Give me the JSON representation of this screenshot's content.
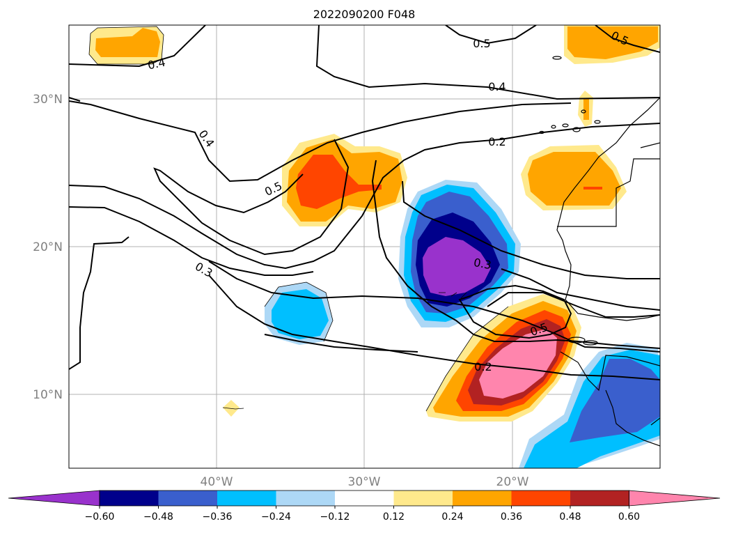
{
  "title": "2022090200 F048",
  "map": {
    "lat_labels": [
      "30°N",
      "20°N",
      "10°N"
    ],
    "lon_labels": [
      "40°W",
      "30°W",
      "20°W"
    ],
    "grid": true,
    "colors": {
      "land_outline": "#000000",
      "grid": "#b0b0b0",
      "contour": "#000000"
    }
  },
  "contour_labels": [
    "0.4",
    "0.5",
    "0.4",
    "0.2",
    "0.4",
    "0.5",
    "0.5",
    "0.3",
    "0.3",
    "0.5",
    "0.2"
  ],
  "colorbar": {
    "ticks": [
      "−0.60",
      "−0.48",
      "−0.36",
      "−0.24",
      "−0.12",
      "0.12",
      "0.24",
      "0.36",
      "0.48",
      "0.60"
    ],
    "colors": [
      "#9932cc",
      "#00008b",
      "#3a5fcd",
      "#00bfff",
      "#add8f6",
      "#ffffff",
      "#ffe98c",
      "#ffa500",
      "#ff4500",
      "#b22222",
      "#ff85ad"
    ],
    "extend": "both"
  }
}
